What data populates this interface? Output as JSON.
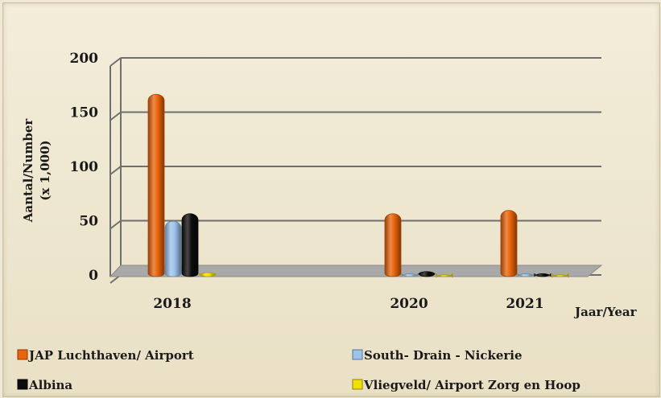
{
  "chart_data": {
    "type": "bar",
    "style": "3d-cylinder",
    "categories": [
      "2018",
      "2020",
      "2021"
    ],
    "series": [
      {
        "name": "JAP  Luchthaven/ Airport",
        "values": [
          165,
          55,
          58
        ],
        "color": "#e8630a"
      },
      {
        "name": "South- Drain - Nickerie",
        "values": [
          48,
          3,
          3
        ],
        "color": "#9cc3ec"
      },
      {
        "name": "Albina",
        "values": [
          55,
          5,
          3
        ],
        "color": "#0b0b0b"
      },
      {
        "name": "Vliegveld/ Airport Zorg en Hoop",
        "values": [
          4,
          2,
          2
        ],
        "color": "#f4e000"
      }
    ],
    "ylabel": "Aantal/Number",
    "ylabel_line2": "(x 1,000)",
    "xlabel": "Jaar/Year",
    "ylim": [
      0,
      200
    ],
    "yticks": [
      "0",
      "50",
      "100",
      "150",
      "200"
    ],
    "grid": true,
    "legend_position": "bottom",
    "background_color": "#efe8d6"
  }
}
